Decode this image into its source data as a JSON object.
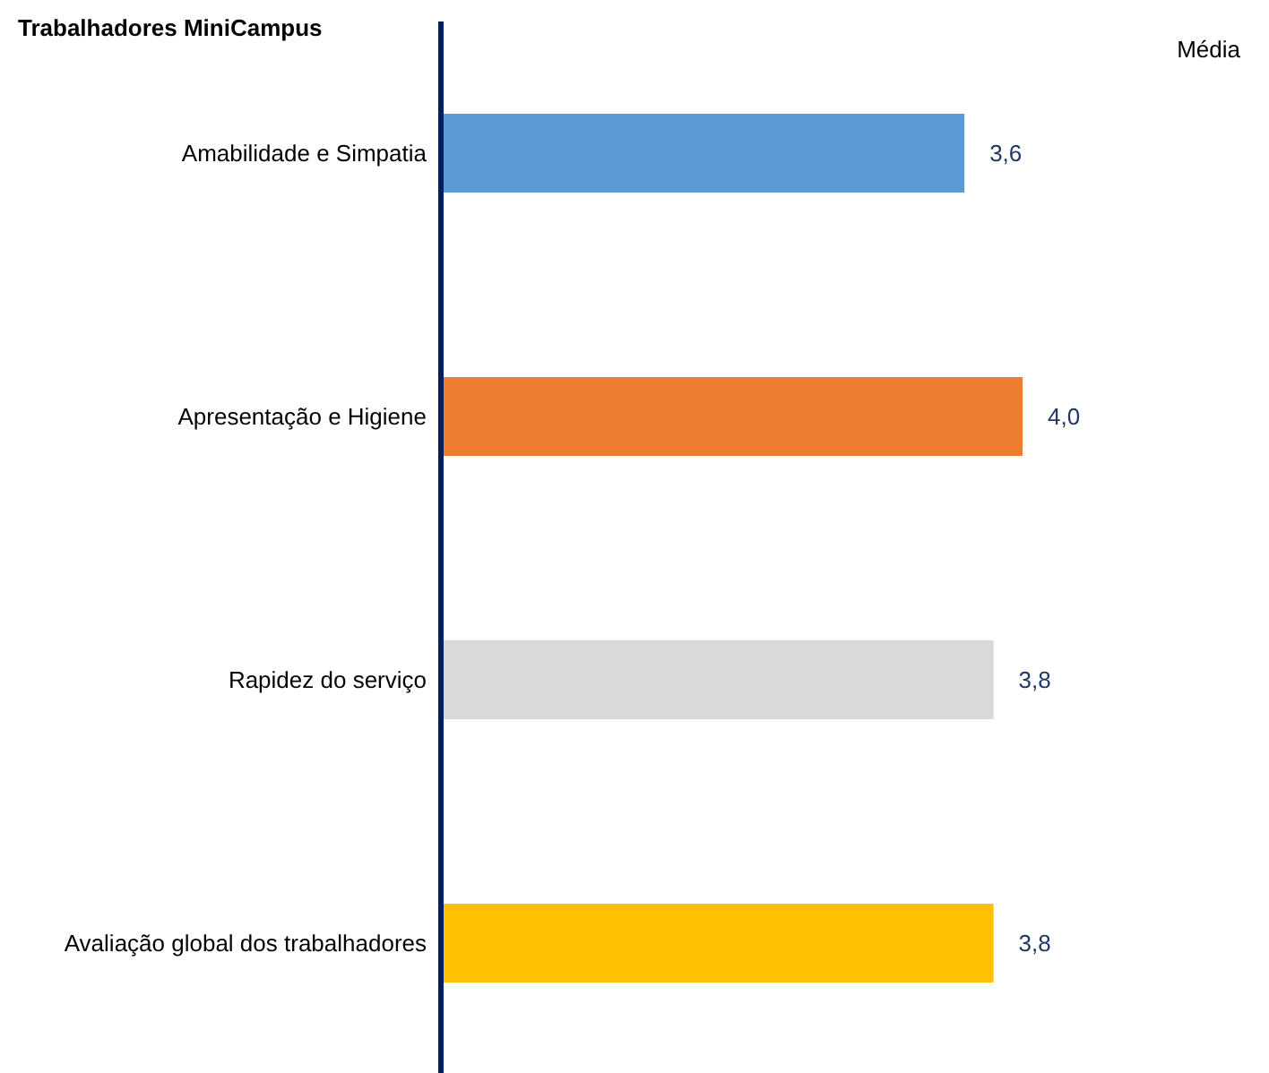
{
  "chart_data": {
    "type": "bar",
    "orientation": "horizontal",
    "title": "Trabalhadores MiniCampus",
    "annotations": [
      "Média"
    ],
    "categories": [
      "Amabilidade e Simpatia",
      "Apresentação e Higiene",
      "Rapidez do serviço",
      "Avaliação global dos trabalhadores"
    ],
    "values": [
      3.6,
      4.0,
      3.8,
      3.8
    ],
    "colors": [
      "#5b9bd5",
      "#ed7d31",
      "#d9d9d9",
      "#ffc000"
    ],
    "value_labels": [
      "3,6",
      "4,0",
      "3,8",
      "3,8"
    ],
    "grid": false
  }
}
